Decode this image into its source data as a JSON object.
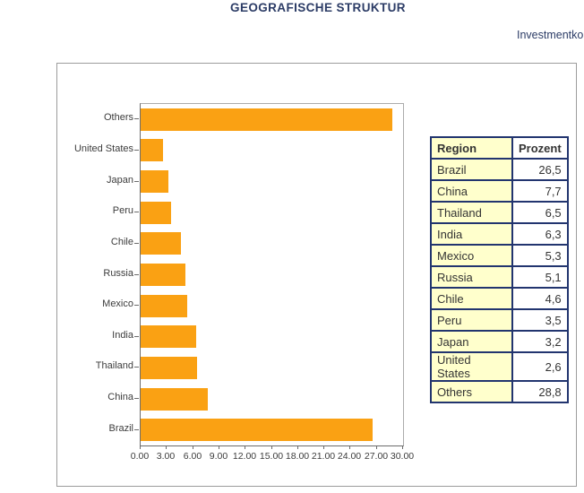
{
  "page": {
    "title": "GEOGRAFISCHE STRUKTUR",
    "header_link": "Investmentko"
  },
  "chart_data": {
    "type": "bar",
    "orientation": "horizontal",
    "title": "GEOGRAFISCHE STRUKTUR",
    "categories": [
      "Others",
      "United States",
      "Japan",
      "Peru",
      "Chile",
      "Russia",
      "Mexico",
      "India",
      "Thailand",
      "China",
      "Brazil"
    ],
    "values": [
      28.8,
      2.6,
      3.2,
      3.5,
      4.6,
      5.1,
      5.3,
      6.3,
      6.5,
      7.7,
      26.5
    ],
    "xlim": [
      0,
      30
    ],
    "x_tick_labels": [
      "0.00",
      "3.00",
      "6.00",
      "9.00",
      "12.00",
      "15.00",
      "18.00",
      "21.00",
      "24.00",
      "27.00",
      "30.00"
    ],
    "grid": false,
    "legend": "none",
    "bar_color": "#FAA113",
    "axis_color": "#6B6B6B",
    "text_color": "#3C3C3C"
  },
  "table": {
    "headers": [
      "Region",
      "Prozent"
    ],
    "rows": [
      [
        "Brazil",
        "26,5"
      ],
      [
        "China",
        "7,7"
      ],
      [
        "Thailand",
        "6,5"
      ],
      [
        "India",
        "6,3"
      ],
      [
        "Mexico",
        "5,3"
      ],
      [
        "Russia",
        "5,1"
      ],
      [
        "Chile",
        "4,6"
      ],
      [
        "Peru",
        "3,5"
      ],
      [
        "Japan",
        "3,2"
      ],
      [
        "United States",
        "2,6"
      ],
      [
        "Others",
        "28,8"
      ]
    ],
    "region_bg": "#FFFFCC",
    "border_color": "#22356F",
    "text_color": "#333333"
  },
  "colors": {
    "title": "#2C3C66",
    "panel_border": "#9C9C9C"
  }
}
